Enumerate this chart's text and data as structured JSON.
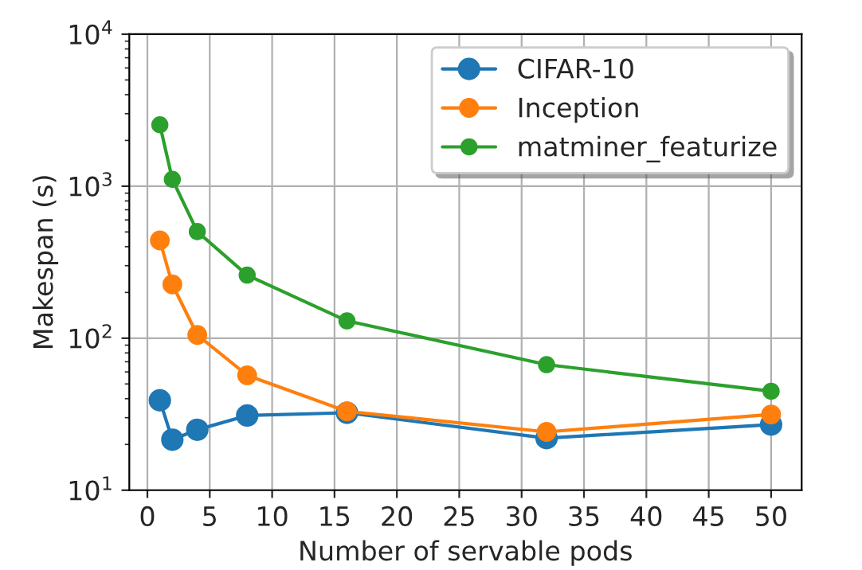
{
  "chart_data": {
    "type": "line",
    "xlabel": "Number of servable pods",
    "ylabel": "Makespan (s)",
    "x": [
      1,
      2,
      4,
      8,
      16,
      32,
      50
    ],
    "series": [
      {
        "name": "CIFAR-10",
        "color": "#1f77b4",
        "values": [
          39,
          21.5,
          25,
          31,
          32.3,
          22,
          27
        ]
      },
      {
        "name": "Inception",
        "color": "#ff7f0e",
        "values": [
          440,
          226,
          105,
          57,
          33,
          24.2,
          31.5
        ]
      },
      {
        "name": "matminer_featurize",
        "color": "#2ca02c",
        "values": [
          2535,
          1110,
          503,
          260,
          130,
          67,
          44.8
        ]
      }
    ],
    "log": "y",
    "xlim": [
      -1.45,
      52.45
    ],
    "ylim": [
      10,
      10000
    ],
    "xticks": [
      0,
      5,
      10,
      15,
      20,
      25,
      30,
      35,
      40,
      45,
      50
    ],
    "yticks": [
      {
        "value": 10,
        "label": "10$^{1}$"
      },
      {
        "value": 100,
        "label": "10$^{2}$"
      },
      {
        "value": 1000,
        "label": "10$^{3}$"
      },
      {
        "value": 10000,
        "label": "10$^{4}$"
      }
    ],
    "grid": true,
    "legend": "top right",
    "marker": "circle",
    "line_style": "solid"
  }
}
